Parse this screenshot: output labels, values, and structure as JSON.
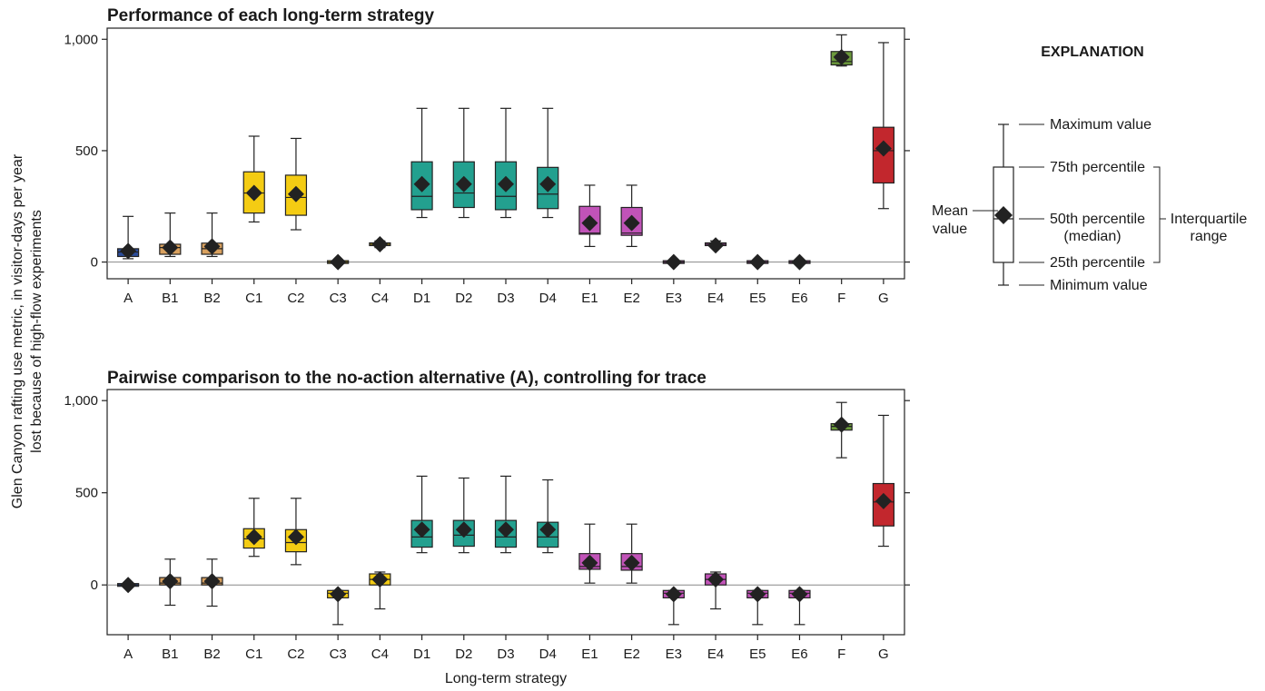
{
  "charts": {
    "ylabel_line1": "Glen Canyon rafting use metric, in visitor-days per year",
    "ylabel_line2": "lost because of high-flow experiments",
    "xlabel": "Long-term strategy"
  },
  "legend": {
    "title": "EXPLANATION",
    "max": "Maximum value",
    "p75": "75th percentile",
    "median_1": "50th percentile",
    "median_2": "(median)",
    "p25": "25th percentile",
    "min": "Minimum value",
    "mean_1": "Mean",
    "mean_2": "value",
    "iqr_1": "Interquartile",
    "iqr_2": "range"
  },
  "colors": {
    "A": "#2b4d9b",
    "B": "#d9a15f",
    "C": "#f4cc13",
    "D": "#23a08f",
    "E": "#c153b8",
    "F": "#6c9a3c",
    "G": "#c2272d"
  },
  "chart_data": [
    {
      "type": "box",
      "title": "Performance of each long-term strategy",
      "xlabel": "Long-term strategy",
      "ylim": [
        -75,
        1050
      ],
      "yticks": [
        0,
        500,
        1000
      ],
      "ytick_labels": [
        "0",
        "500",
        "1,000"
      ],
      "categories": [
        "A",
        "B1",
        "B2",
        "C1",
        "C2",
        "C3",
        "C4",
        "D1",
        "D2",
        "D3",
        "D4",
        "E1",
        "E2",
        "E3",
        "E4",
        "E5",
        "E6",
        "F",
        "G"
      ],
      "groups": [
        "A",
        "B",
        "B",
        "C",
        "C",
        "C",
        "C",
        "D",
        "D",
        "D",
        "D",
        "E",
        "E",
        "E",
        "E",
        "E",
        "E",
        "F",
        "G"
      ],
      "min": [
        15,
        25,
        25,
        180,
        145,
        0,
        65,
        200,
        200,
        200,
        200,
        70,
        70,
        0,
        65,
        0,
        0,
        880,
        240
      ],
      "q1": [
        25,
        35,
        35,
        220,
        210,
        0,
        75,
        235,
        245,
        235,
        240,
        125,
        120,
        0,
        75,
        0,
        0,
        885,
        355
      ],
      "median": [
        45,
        65,
        60,
        310,
        290,
        0,
        80,
        295,
        310,
        295,
        305,
        130,
        130,
        0,
        80,
        0,
        0,
        900,
        500
      ],
      "q3": [
        60,
        80,
        85,
        405,
        390,
        0,
        85,
        450,
        450,
        450,
        425,
        250,
        245,
        0,
        85,
        0,
        0,
        945,
        605
      ],
      "max": [
        205,
        220,
        220,
        565,
        555,
        0,
        95,
        690,
        690,
        690,
        690,
        345,
        345,
        0,
        95,
        0,
        0,
        1020,
        985
      ],
      "mean": [
        50,
        65,
        70,
        310,
        305,
        0,
        80,
        350,
        350,
        350,
        350,
        175,
        175,
        0,
        75,
        0,
        0,
        920,
        510
      ]
    },
    {
      "type": "box",
      "title": "Pairwise comparison to the no-action alternative (A), controlling for trace",
      "xlabel": "Long-term strategy",
      "ylim": [
        -270,
        1060
      ],
      "yticks": [
        0,
        500,
        1000
      ],
      "ytick_labels": [
        "0",
        "500",
        "1,000"
      ],
      "categories": [
        "A",
        "B1",
        "B2",
        "C1",
        "C2",
        "C3",
        "C4",
        "D1",
        "D2",
        "D3",
        "D4",
        "E1",
        "E2",
        "E3",
        "E4",
        "E5",
        "E6",
        "F",
        "G"
      ],
      "groups": [
        "A",
        "B",
        "B",
        "C",
        "C",
        "C",
        "C",
        "D",
        "D",
        "D",
        "D",
        "E",
        "E",
        "E",
        "E",
        "E",
        "E",
        "F",
        "G"
      ],
      "min": [
        0,
        -110,
        -115,
        155,
        110,
        -215,
        -130,
        175,
        175,
        175,
        175,
        10,
        10,
        -215,
        -130,
        -215,
        -215,
        690,
        210
      ],
      "q1": [
        0,
        0,
        0,
        200,
        180,
        -70,
        0,
        205,
        210,
        205,
        205,
        85,
        80,
        -70,
        0,
        -70,
        -70,
        840,
        320
      ],
      "median": [
        0,
        10,
        10,
        250,
        230,
        -45,
        30,
        260,
        270,
        260,
        260,
        100,
        100,
        -45,
        30,
        -45,
        -45,
        860,
        450
      ],
      "q3": [
        0,
        40,
        40,
        305,
        300,
        -30,
        60,
        350,
        350,
        350,
        340,
        170,
        170,
        -30,
        60,
        -30,
        -30,
        875,
        550
      ],
      "max": [
        0,
        140,
        140,
        470,
        470,
        -30,
        70,
        590,
        580,
        590,
        570,
        330,
        330,
        -30,
        70,
        -30,
        -30,
        990,
        920
      ],
      "mean": [
        0,
        20,
        20,
        260,
        260,
        -50,
        30,
        300,
        300,
        300,
        300,
        120,
        120,
        -50,
        30,
        -50,
        -50,
        870,
        455
      ]
    }
  ]
}
